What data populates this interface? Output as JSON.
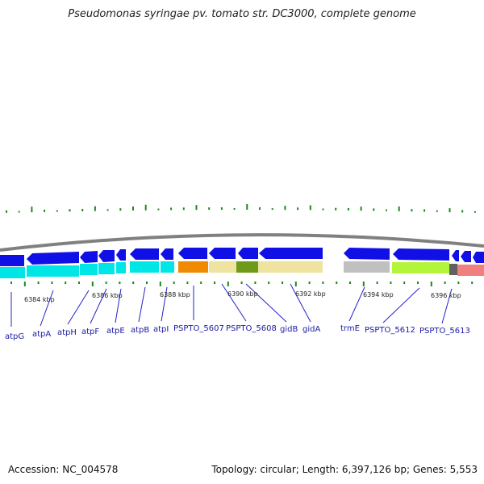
{
  "title": "Pseudomonas syringae pv. tomato str. DC3000, complete genome",
  "footer": {
    "accession": "Accession: NC_004578",
    "summary": "Topology: circular; Length: 6,397,126 bp; Genes: 5,553"
  },
  "kbp_labels": [
    "6384 kbp",
    "6386 kbp",
    "6388 kbp",
    "6390 kbp",
    "6392 kbp",
    "6394 kbp",
    "6396 kbp"
  ],
  "gene_labels": [
    "atpG",
    "atpA",
    "atpH",
    "atpF",
    "atpE",
    "atpB",
    "atpI",
    "PSPTO_5607",
    "PSPTO_5608",
    "gidB",
    "gidA",
    "trmE",
    "PSPTO_5612",
    "PSPTO_5613"
  ],
  "colors": {
    "backbone": "#808080",
    "gene_arrow": "#1010e6",
    "cog_cyan": "#00e6e6",
    "cog_orange": "#f08a00",
    "cog_khaki": "#efe3a0",
    "cog_olive": "#6e9a1a",
    "cog_grey": "#c0c0c0",
    "cog_lime": "#b3f53a",
    "cog_pink": "#f08080",
    "gc_tick": "#1a8a1a",
    "label_line": "#2222cc"
  }
}
